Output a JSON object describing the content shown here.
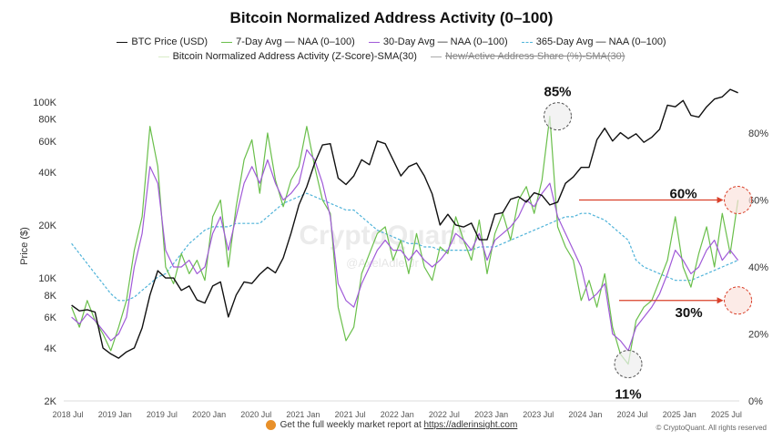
{
  "chart_data": {
    "type": "line",
    "title": "Bitcoin Normalized Address Activity (0–100)",
    "ylabel": "Price ($)",
    "y_left": {
      "scale": "log",
      "range": [
        2000,
        130000
      ],
      "ticks": [
        "2K",
        "4K",
        "6K",
        "8K",
        "10K",
        "20K",
        "40K",
        "60K",
        "80K",
        "100K"
      ],
      "tick_values": [
        2000,
        4000,
        6000,
        8000,
        10000,
        20000,
        40000,
        60000,
        80000,
        100000
      ]
    },
    "y_right": {
      "scale": "linear",
      "range": [
        0,
        100
      ],
      "ticks": [
        "0%",
        "20%",
        "40%",
        "60%",
        "80%"
      ],
      "tick_values": [
        0,
        20,
        40,
        60,
        80
      ]
    },
    "x_range": [
      "2018-06-15",
      "2025-08-20"
    ],
    "x_ticks": [
      "2018 Jul",
      "2019 Jan",
      "2019 Jul",
      "2020 Jan",
      "2020 Jul",
      "2021 Jan",
      "2021 Jul",
      "2022 Jan",
      "2022 Jul",
      "2023 Jan",
      "2023 Jul",
      "2024 Jan",
      "2024 Jul",
      "2025 Jan",
      "2025 Jul"
    ],
    "x_tick_dates": [
      "2018-07-01",
      "2019-01-01",
      "2019-07-01",
      "2020-01-01",
      "2020-07-01",
      "2021-01-01",
      "2021-07-01",
      "2022-01-01",
      "2022-07-01",
      "2023-01-01",
      "2023-07-01",
      "2024-01-01",
      "2024-07-01",
      "2025-01-01",
      "2025-07-01"
    ],
    "grid": false,
    "legend_placement": "top",
    "months_start": "2018-07",
    "series": [
      {
        "name": "BTC Price (USD)",
        "axis": "left",
        "color": "#111111",
        "values": [
          7000,
          6500,
          6600,
          6400,
          4000,
          3700,
          3500,
          3800,
          4000,
          5200,
          8000,
          11000,
          10000,
          10000,
          8500,
          9000,
          7500,
          7200,
          9000,
          9500,
          6000,
          8000,
          9500,
          9300,
          10500,
          11500,
          10700,
          13000,
          18000,
          26000,
          33000,
          45000,
          57000,
          58000,
          37000,
          34000,
          38000,
          47000,
          44000,
          60000,
          58000,
          47000,
          38000,
          43000,
          45000,
          38000,
          30000,
          20000,
          23000,
          20000,
          19500,
          20500,
          16500,
          16500,
          23000,
          23500,
          28000,
          29000,
          27000,
          30500,
          29500,
          26000,
          27000,
          34500,
          37500,
          42500,
          42500,
          61000,
          71000,
          60000,
          67000,
          62000,
          66000,
          59000,
          63000,
          70000,
          96000,
          94000,
          102000,
          84000,
          82000,
          94000,
          104000,
          107000,
          118000,
          113000
        ]
      },
      {
        "name": "7-Day Avg — NAA (0–100)",
        "axis": "right",
        "color": "#6abf4b",
        "values": [
          28,
          22,
          30,
          24,
          20,
          15,
          22,
          30,
          45,
          55,
          82,
          70,
          40,
          35,
          44,
          38,
          42,
          36,
          55,
          60,
          40,
          58,
          72,
          78,
          62,
          80,
          66,
          58,
          66,
          70,
          82,
          70,
          60,
          56,
          28,
          18,
          22,
          38,
          44,
          50,
          52,
          42,
          48,
          38,
          50,
          40,
          36,
          46,
          44,
          55,
          48,
          42,
          54,
          38,
          50,
          56,
          48,
          60,
          64,
          56,
          66,
          85,
          52,
          46,
          42,
          30,
          36,
          28,
          38,
          22,
          14,
          11,
          24,
          28,
          30,
          36,
          42,
          55,
          40,
          34,
          44,
          52,
          40,
          56,
          44,
          60
        ]
      },
      {
        "name": "30-Day Avg — NAA (0–100)",
        "axis": "right",
        "color": "#a05ad8",
        "values": [
          25,
          23,
          26,
          24,
          21,
          18,
          20,
          25,
          40,
          50,
          70,
          65,
          45,
          40,
          40,
          42,
          38,
          40,
          50,
          55,
          45,
          55,
          65,
          70,
          65,
          72,
          65,
          60,
          62,
          65,
          75,
          72,
          65,
          55,
          35,
          30,
          28,
          35,
          40,
          45,
          48,
          45,
          45,
          42,
          45,
          42,
          40,
          42,
          45,
          50,
          48,
          45,
          50,
          42,
          48,
          50,
          52,
          55,
          60,
          58,
          62,
          65,
          55,
          50,
          45,
          40,
          30,
          32,
          35,
          20,
          18,
          15,
          22,
          25,
          28,
          32,
          38,
          45,
          42,
          38,
          40,
          45,
          48,
          42,
          45,
          42
        ]
      },
      {
        "name": "365-Day Avg — NAA (0–100)",
        "axis": "right",
        "color": "#4fb3d9",
        "values": [
          47,
          44,
          41,
          38,
          35,
          32,
          30,
          30,
          31,
          33,
          35,
          37,
          38,
          41,
          44,
          47,
          49,
          51,
          52,
          52,
          52,
          53,
          53,
          53,
          53,
          55,
          57,
          59,
          60,
          61,
          62,
          61,
          60,
          59,
          58,
          57,
          57,
          55,
          53,
          51,
          50,
          49,
          48,
          47,
          47,
          46,
          46,
          45,
          45,
          45,
          45,
          45,
          46,
          46,
          46,
          47,
          48,
          49,
          50,
          51,
          52,
          53,
          54,
          55,
          55,
          56,
          56,
          55,
          54,
          52,
          50,
          48,
          42,
          40,
          39,
          38,
          37,
          36,
          36,
          36,
          37,
          38,
          39,
          40,
          41,
          42
        ]
      },
      {
        "name": "Bitcoin Normalized Address Activity (Z-Score)-SMA(30)",
        "axis": "right",
        "color": "#d9ecc8",
        "hidden": true
      },
      {
        "name": "New/Active Address Share (%)-SMA(30)",
        "axis": "right",
        "color": "#aaaaaa",
        "hidden": true
      }
    ],
    "annotations": [
      {
        "text": "85%",
        "date": "2023-09",
        "value": 85
      },
      {
        "text": "60%",
        "date": "2025-08",
        "value": 60
      },
      {
        "text": "30%",
        "date": "2025-08",
        "value": 30
      },
      {
        "text": "11%",
        "date": "2024-06",
        "value": 11
      }
    ],
    "watermark": [
      "CryptoQuant",
      "@AxelAdlerJr"
    ]
  },
  "footer": {
    "text": "Get the full weekly market report at ",
    "link": "https://adlerinsight.com",
    "copyright": "© CryptoQuant. All rights reserved"
  }
}
